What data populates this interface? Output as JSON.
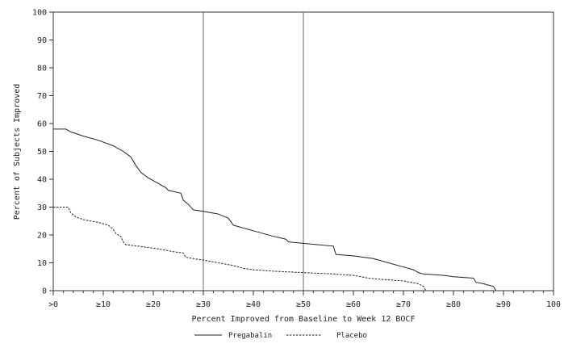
{
  "chart_data": {
    "type": "line",
    "xlabel": "Percent Improved from Baseline to Week 12 BOCF",
    "ylabel": "Percent of Subjects Improved",
    "xlim": [
      0,
      100
    ],
    "ylim": [
      0,
      100
    ],
    "x_ticks": [
      {
        "value": 0,
        "label": ">0"
      },
      {
        "value": 10,
        "label": "≥10"
      },
      {
        "value": 20,
        "label": "≥20"
      },
      {
        "value": 30,
        "label": "≥30"
      },
      {
        "value": 40,
        "label": "≥40"
      },
      {
        "value": 50,
        "label": "≥50"
      },
      {
        "value": 60,
        "label": "≥60"
      },
      {
        "value": 70,
        "label": "≥70"
      },
      {
        "value": 80,
        "label": "≥80"
      },
      {
        "value": 90,
        "label": "≥90"
      },
      {
        "value": 100,
        "label": "100"
      }
    ],
    "y_ticks": [
      0,
      10,
      20,
      30,
      40,
      50,
      60,
      70,
      80,
      90,
      100
    ],
    "reference_lines_x": [
      30,
      50
    ],
    "grid": false,
    "legend_position": "bottom",
    "series": [
      {
        "name": "Pregabalin",
        "style": "solid",
        "points": [
          [
            0,
            58
          ],
          [
            2.5,
            58
          ],
          [
            3.5,
            57
          ],
          [
            6,
            55.5
          ],
          [
            9,
            54
          ],
          [
            12,
            52
          ],
          [
            14,
            50
          ],
          [
            15.5,
            48
          ],
          [
            16.5,
            45
          ],
          [
            17.5,
            42.5
          ],
          [
            19,
            40.5
          ],
          [
            21,
            38.5
          ],
          [
            22.5,
            37
          ],
          [
            23,
            36
          ],
          [
            25.5,
            35
          ],
          [
            26,
            32.5
          ],
          [
            27,
            31
          ],
          [
            28,
            29
          ],
          [
            30,
            28.5
          ],
          [
            33,
            27.5
          ],
          [
            35,
            26
          ],
          [
            36,
            23.5
          ],
          [
            40,
            21.5
          ],
          [
            44,
            19.5
          ],
          [
            46.5,
            18.5
          ],
          [
            47,
            17.5
          ],
          [
            50,
            17
          ],
          [
            53,
            16.5
          ],
          [
            56,
            16
          ],
          [
            56.5,
            13
          ],
          [
            60,
            12.5
          ],
          [
            64,
            11.5
          ],
          [
            67,
            10
          ],
          [
            70,
            8.5
          ],
          [
            72,
            7.5
          ],
          [
            73,
            6.5
          ],
          [
            74,
            6
          ],
          [
            78,
            5.5
          ],
          [
            80,
            5
          ],
          [
            84,
            4.5
          ],
          [
            84.5,
            3
          ],
          [
            86,
            2.5
          ],
          [
            87,
            2
          ],
          [
            88,
            1.5
          ],
          [
            88.5,
            0
          ]
        ]
      },
      {
        "name": "Placebo",
        "style": "dashed",
        "points": [
          [
            0,
            30
          ],
          [
            3,
            30
          ],
          [
            3.5,
            28
          ],
          [
            4.5,
            26.5
          ],
          [
            6,
            25.5
          ],
          [
            9,
            24.5
          ],
          [
            11,
            23.5
          ],
          [
            12,
            22
          ],
          [
            12.5,
            20.5
          ],
          [
            13.5,
            19.5
          ],
          [
            14,
            17.5
          ],
          [
            14.5,
            16.5
          ],
          [
            17,
            16
          ],
          [
            21,
            15
          ],
          [
            24,
            14
          ],
          [
            26,
            13.5
          ],
          [
            26.5,
            12
          ],
          [
            28,
            11.5
          ],
          [
            30,
            11
          ],
          [
            33,
            10
          ],
          [
            36,
            9
          ],
          [
            38,
            8
          ],
          [
            40,
            7.5
          ],
          [
            44,
            7
          ],
          [
            50,
            6.5
          ],
          [
            56,
            6
          ],
          [
            60,
            5.5
          ],
          [
            63,
            4.5
          ],
          [
            66,
            4
          ],
          [
            70,
            3.5
          ],
          [
            73,
            2.5
          ],
          [
            74,
            1.5
          ],
          [
            74.5,
            0
          ]
        ]
      }
    ]
  }
}
